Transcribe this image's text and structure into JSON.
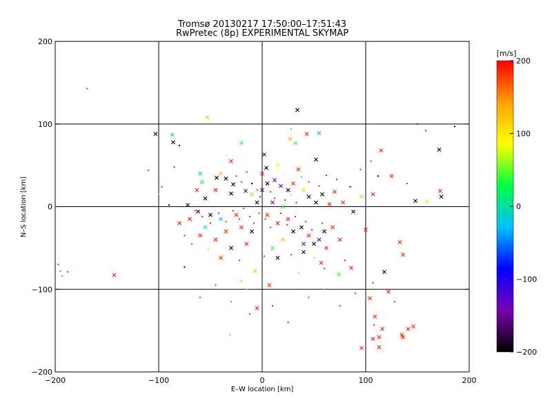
{
  "chart_data": {
    "type": "scatter",
    "title": "Tromsø 20130217 17:50:00–17:51:43",
    "subtitle": "RwPretec (8p) EXPERIMENTAL SKYMAP",
    "xlabel": "E–W location [km]",
    "ylabel": "N–S location [km]",
    "xlim": [
      -200,
      200
    ],
    "ylim": [
      -200,
      200
    ],
    "xticks": [
      "−200",
      "−100",
      "0",
      "100",
      "200"
    ],
    "yticks": [
      "−200",
      "−100",
      "0",
      "100",
      "200"
    ],
    "grid_lines": [
      -100,
      0,
      100
    ],
    "colorbar": {
      "label": "[m/s]",
      "range": [
        -200,
        200
      ],
      "ticks": [
        "−200",
        "−100",
        "0",
        "100",
        "200"
      ],
      "colormap": [
        "#000000",
        "#7a00b0",
        "#0000ff",
        "#00c0ff",
        "#00ff40",
        "#ffff00",
        "#ffa000",
        "#ff0000"
      ]
    },
    "marker_types": [
      "cross",
      "dot"
    ],
    "points": [
      {
        "x": -169,
        "y": 143,
        "v": 190,
        "m": "dot"
      },
      {
        "x": -197,
        "y": -70,
        "v": 190,
        "m": "dot"
      },
      {
        "x": -195,
        "y": -78,
        "v": 180,
        "m": "dot"
      },
      {
        "x": -193,
        "y": -84,
        "v": 170,
        "m": "dot"
      },
      {
        "x": -188,
        "y": -79,
        "v": 185,
        "m": "dot"
      },
      {
        "x": -143,
        "y": -83,
        "v": 190,
        "m": "cross"
      },
      {
        "x": -103,
        "y": 88,
        "v": -200,
        "m": "cross"
      },
      {
        "x": -86,
        "y": 78,
        "v": -200,
        "m": "cross"
      },
      {
        "x": -87,
        "y": 87,
        "v": -10,
        "m": "cross"
      },
      {
        "x": -53,
        "y": 108,
        "v": 120,
        "m": "cross"
      },
      {
        "x": -20,
        "y": 77,
        "v": 40,
        "m": "cross"
      },
      {
        "x": 34,
        "y": 117,
        "v": -200,
        "m": "cross"
      },
      {
        "x": 28,
        "y": 94,
        "v": 30,
        "m": "dot"
      },
      {
        "x": 43,
        "y": 88,
        "v": 190,
        "m": "cross"
      },
      {
        "x": 55,
        "y": 89,
        "v": -20,
        "m": "cross"
      },
      {
        "x": 32,
        "y": 77,
        "v": 40,
        "m": "cross"
      },
      {
        "x": 27,
        "y": 82,
        "v": 140,
        "m": "cross"
      },
      {
        "x": 2,
        "y": 63,
        "v": -160,
        "m": "cross"
      },
      {
        "x": 4,
        "y": 47,
        "v": -200,
        "m": "cross"
      },
      {
        "x": 52,
        "y": 57,
        "v": -200,
        "m": "cross"
      },
      {
        "x": 171,
        "y": 69,
        "v": -200,
        "m": "cross"
      },
      {
        "x": 150,
        "y": 100,
        "v": -120,
        "m": "dot"
      },
      {
        "x": 186,
        "y": 97,
        "v": -200,
        "m": "dot"
      },
      {
        "x": 158,
        "y": 92,
        "v": 190,
        "m": "dot"
      },
      {
        "x": 115,
        "y": 68,
        "v": 190,
        "m": "cross"
      },
      {
        "x": 125,
        "y": 37,
        "v": 190,
        "m": "cross"
      },
      {
        "x": 112,
        "y": 37,
        "v": -200,
        "m": "dot"
      },
      {
        "x": 172,
        "y": 19,
        "v": 190,
        "m": "cross"
      },
      {
        "x": 173,
        "y": 12,
        "v": -200,
        "m": "cross"
      },
      {
        "x": 148,
        "y": 7,
        "v": -200,
        "m": "cross"
      },
      {
        "x": 159,
        "y": 6,
        "v": 110,
        "m": "cross"
      },
      {
        "x": 107,
        "y": 15,
        "v": 190,
        "m": "cross"
      },
      {
        "x": 96,
        "y": 12,
        "v": 60,
        "m": "cross"
      },
      {
        "x": 88,
        "y": -6,
        "v": -200,
        "m": "cross"
      },
      {
        "x": 100,
        "y": -28,
        "v": 190,
        "m": "cross"
      },
      {
        "x": 118,
        "y": -79,
        "v": -200,
        "m": "cross"
      },
      {
        "x": 136,
        "y": -58,
        "v": 190,
        "m": "cross"
      },
      {
        "x": 133,
        "y": -43,
        "v": 190,
        "m": "cross"
      },
      {
        "x": 86,
        "y": -74,
        "v": 190,
        "m": "cross"
      },
      {
        "x": 74,
        "y": -82,
        "v": 40,
        "m": "cross"
      },
      {
        "x": 122,
        "y": -103,
        "v": 190,
        "m": "cross"
      },
      {
        "x": 104,
        "y": -111,
        "v": 190,
        "m": "cross"
      },
      {
        "x": 109,
        "y": -133,
        "v": 190,
        "m": "cross"
      },
      {
        "x": 116,
        "y": -148,
        "v": 190,
        "m": "cross"
      },
      {
        "x": 113,
        "y": -158,
        "v": 190,
        "m": "cross"
      },
      {
        "x": 107,
        "y": -160,
        "v": 190,
        "m": "cross"
      },
      {
        "x": 96,
        "y": -171,
        "v": 190,
        "m": "cross"
      },
      {
        "x": 113,
        "y": -170,
        "v": 190,
        "m": "cross"
      },
      {
        "x": 135,
        "y": -155,
        "v": 190,
        "m": "cross"
      },
      {
        "x": 136,
        "y": -158,
        "v": 190,
        "m": "cross"
      },
      {
        "x": 146,
        "y": -145,
        "v": 190,
        "m": "cross"
      },
      {
        "x": 141,
        "y": -148,
        "v": 190,
        "m": "cross"
      },
      {
        "x": -75,
        "y": -73,
        "v": -200,
        "m": "dot"
      },
      {
        "x": -31,
        "y": -155,
        "v": 50,
        "m": "dot"
      },
      {
        "x": -5,
        "y": -123,
        "v": 190,
        "m": "cross"
      },
      {
        "x": 7,
        "y": -95,
        "v": 190,
        "m": "cross"
      },
      {
        "x": -7,
        "y": -78,
        "v": 120,
        "m": "cross"
      },
      {
        "x": 15,
        "y": -62,
        "v": -200,
        "m": "cross"
      },
      {
        "x": 40,
        "y": -55,
        "v": -200,
        "m": "cross"
      },
      {
        "x": 57,
        "y": -68,
        "v": 190,
        "m": "cross"
      },
      {
        "x": -40,
        "y": -62,
        "v": 190,
        "m": "cross"
      },
      {
        "x": -58,
        "y": 30,
        "v": 30,
        "m": "cross"
      },
      {
        "x": -60,
        "y": 40,
        "v": -10,
        "m": "cross"
      },
      {
        "x": -44,
        "y": 35,
        "v": -200,
        "m": "cross"
      },
      {
        "x": -35,
        "y": 34,
        "v": -200,
        "m": "cross"
      },
      {
        "x": -28,
        "y": 27,
        "v": -200,
        "m": "cross"
      },
      {
        "x": -63,
        "y": 20,
        "v": 190,
        "m": "cross"
      },
      {
        "x": -55,
        "y": 10,
        "v": -200,
        "m": "cross"
      },
      {
        "x": -45,
        "y": 20,
        "v": 190,
        "m": "cross"
      },
      {
        "x": -30,
        "y": 16,
        "v": -200,
        "m": "cross"
      },
      {
        "x": -16,
        "y": 19,
        "v": -100,
        "m": "cross"
      },
      {
        "x": -10,
        "y": 15,
        "v": 60,
        "m": "cross"
      },
      {
        "x": 0,
        "y": 20,
        "v": -150,
        "m": "cross"
      },
      {
        "x": 5,
        "y": 28,
        "v": -200,
        "m": "cross"
      },
      {
        "x": 12,
        "y": 32,
        "v": -160,
        "m": "cross"
      },
      {
        "x": 18,
        "y": 25,
        "v": -120,
        "m": "cross"
      },
      {
        "x": 25,
        "y": 20,
        "v": -200,
        "m": "cross"
      },
      {
        "x": 30,
        "y": 28,
        "v": 190,
        "m": "cross"
      },
      {
        "x": 40,
        "y": 20,
        "v": 110,
        "m": "cross"
      },
      {
        "x": 45,
        "y": 12,
        "v": -200,
        "m": "cross"
      },
      {
        "x": 58,
        "y": 15,
        "v": -200,
        "m": "cross"
      },
      {
        "x": 70,
        "y": 18,
        "v": 190,
        "m": "cross"
      },
      {
        "x": 52,
        "y": 5,
        "v": -200,
        "m": "cross"
      },
      {
        "x": 65,
        "y": 3,
        "v": 190,
        "m": "cross"
      },
      {
        "x": 78,
        "y": 5,
        "v": 190,
        "m": "cross"
      },
      {
        "x": -72,
        "y": 2,
        "v": -200,
        "m": "cross"
      },
      {
        "x": -62,
        "y": -6,
        "v": -200,
        "m": "cross"
      },
      {
        "x": -50,
        "y": -10,
        "v": -200,
        "m": "cross"
      },
      {
        "x": -40,
        "y": -15,
        "v": -30,
        "m": "cross"
      },
      {
        "x": -25,
        "y": -10,
        "v": 190,
        "m": "cross"
      },
      {
        "x": -20,
        "y": -25,
        "v": 190,
        "m": "cross"
      },
      {
        "x": -35,
        "y": -30,
        "v": 190,
        "m": "cross"
      },
      {
        "x": -45,
        "y": -40,
        "v": 190,
        "m": "cross"
      },
      {
        "x": -55,
        "y": -25,
        "v": -10,
        "m": "cross"
      },
      {
        "x": -10,
        "y": -30,
        "v": -200,
        "m": "cross"
      },
      {
        "x": 5,
        "y": -10,
        "v": 190,
        "m": "cross"
      },
      {
        "x": 15,
        "y": -20,
        "v": 190,
        "m": "cross"
      },
      {
        "x": 25,
        "y": -15,
        "v": 190,
        "m": "cross"
      },
      {
        "x": 30,
        "y": -30,
        "v": -200,
        "m": "cross"
      },
      {
        "x": 38,
        "y": -25,
        "v": -200,
        "m": "cross"
      },
      {
        "x": 45,
        "y": -35,
        "v": 190,
        "m": "cross"
      },
      {
        "x": 50,
        "y": -45,
        "v": -200,
        "m": "cross"
      },
      {
        "x": 55,
        "y": -40,
        "v": -120,
        "m": "cross"
      },
      {
        "x": 60,
        "y": -30,
        "v": -200,
        "m": "cross"
      },
      {
        "x": 68,
        "y": -25,
        "v": 190,
        "m": "cross"
      },
      {
        "x": 75,
        "y": -40,
        "v": 190,
        "m": "cross"
      },
      {
        "x": 62,
        "y": -50,
        "v": 190,
        "m": "cross"
      },
      {
        "x": 40,
        "y": -45,
        "v": -150,
        "m": "cross"
      },
      {
        "x": 20,
        "y": -40,
        "v": 120,
        "m": "cross"
      },
      {
        "x": 10,
        "y": -50,
        "v": 40,
        "m": "cross"
      },
      {
        "x": -30,
        "y": -50,
        "v": -200,
        "m": "cross"
      },
      {
        "x": -15,
        "y": -45,
        "v": 190,
        "m": "cross"
      },
      {
        "x": -5,
        "y": 5,
        "v": -200,
        "m": "cross"
      },
      {
        "x": 10,
        "y": 5,
        "v": -120,
        "m": "cross"
      },
      {
        "x": 20,
        "y": 0,
        "v": 40,
        "m": "cross"
      },
      {
        "x": -70,
        "y": -15,
        "v": 190,
        "m": "cross"
      },
      {
        "x": -80,
        "y": -20,
        "v": 190,
        "m": "cross"
      },
      {
        "x": -60,
        "y": -35,
        "v": 190,
        "m": "cross"
      },
      {
        "x": 35,
        "y": 45,
        "v": 190,
        "m": "cross"
      },
      {
        "x": -30,
        "y": 55,
        "v": 190,
        "m": "cross"
      },
      {
        "x": -40,
        "y": 40,
        "v": 120,
        "m": "cross"
      },
      {
        "x": 0,
        "y": 40,
        "v": 190,
        "m": "cross"
      },
      {
        "x": 15,
        "y": 50,
        "v": 80,
        "m": "cross"
      },
      {
        "x": -85,
        "y": 48,
        "v": 190,
        "m": "dot"
      },
      {
        "x": -110,
        "y": 44,
        "v": 190,
        "m": "dot"
      },
      {
        "x": -97,
        "y": 24,
        "v": 190,
        "m": "dot"
      },
      {
        "x": -80,
        "y": 74,
        "v": -200,
        "m": "dot"
      },
      {
        "x": -25,
        "y": 37,
        "v": 190,
        "m": "dot"
      },
      {
        "x": -15,
        "y": 42,
        "v": 190,
        "m": "dot"
      },
      {
        "x": -20,
        "y": 30,
        "v": 190,
        "m": "dot"
      },
      {
        "x": -10,
        "y": 28,
        "v": -200,
        "m": "dot"
      },
      {
        "x": -5,
        "y": 20,
        "v": 190,
        "m": "dot"
      },
      {
        "x": -2,
        "y": 12,
        "v": -150,
        "m": "dot"
      },
      {
        "x": 8,
        "y": 18,
        "v": 190,
        "m": "dot"
      },
      {
        "x": 12,
        "y": 10,
        "v": 190,
        "m": "dot"
      },
      {
        "x": 22,
        "y": 8,
        "v": 190,
        "m": "dot"
      },
      {
        "x": 28,
        "y": 14,
        "v": 60,
        "m": "dot"
      },
      {
        "x": 33,
        "y": 5,
        "v": 190,
        "m": "dot"
      },
      {
        "x": 38,
        "y": 36,
        "v": -20,
        "m": "dot"
      },
      {
        "x": 45,
        "y": 30,
        "v": 190,
        "m": "dot"
      },
      {
        "x": 55,
        "y": 25,
        "v": 190,
        "m": "dot"
      },
      {
        "x": 62,
        "y": 38,
        "v": 190,
        "m": "dot"
      },
      {
        "x": 72,
        "y": 33,
        "v": 190,
        "m": "dot"
      },
      {
        "x": 85,
        "y": 24,
        "v": -200,
        "m": "dot"
      },
      {
        "x": 95,
        "y": 45,
        "v": 190,
        "m": "dot"
      },
      {
        "x": 105,
        "y": 55,
        "v": 190,
        "m": "dot"
      },
      {
        "x": 140,
        "y": 28,
        "v": 190,
        "m": "dot"
      },
      {
        "x": -65,
        "y": -5,
        "v": 190,
        "m": "dot"
      },
      {
        "x": -58,
        "y": -12,
        "v": 190,
        "m": "dot"
      },
      {
        "x": -50,
        "y": -20,
        "v": 190,
        "m": "dot"
      },
      {
        "x": -42,
        "y": -8,
        "v": 190,
        "m": "dot"
      },
      {
        "x": -35,
        "y": -18,
        "v": 190,
        "m": "dot"
      },
      {
        "x": -28,
        "y": -5,
        "v": 190,
        "m": "dot"
      },
      {
        "x": -22,
        "y": -15,
        "v": 190,
        "m": "dot"
      },
      {
        "x": -18,
        "y": -2,
        "v": 190,
        "m": "dot"
      },
      {
        "x": -12,
        "y": -12,
        "v": 190,
        "m": "dot"
      },
      {
        "x": -8,
        "y": -20,
        "v": 190,
        "m": "dot"
      },
      {
        "x": -3,
        "y": -8,
        "v": 190,
        "m": "dot"
      },
      {
        "x": 3,
        "y": -15,
        "v": 190,
        "m": "dot"
      },
      {
        "x": 8,
        "y": -25,
        "v": 190,
        "m": "dot"
      },
      {
        "x": 18,
        "y": -8,
        "v": 190,
        "m": "dot"
      },
      {
        "x": 24,
        "y": -22,
        "v": 190,
        "m": "dot"
      },
      {
        "x": 32,
        "y": -12,
        "v": 190,
        "m": "dot"
      },
      {
        "x": 42,
        "y": -18,
        "v": 190,
        "m": "dot"
      },
      {
        "x": 48,
        "y": -28,
        "v": 190,
        "m": "dot"
      },
      {
        "x": 58,
        "y": -20,
        "v": 190,
        "m": "dot"
      },
      {
        "x": -75,
        "y": -35,
        "v": 190,
        "m": "dot"
      },
      {
        "x": -68,
        "y": -45,
        "v": 190,
        "m": "dot"
      },
      {
        "x": -52,
        "y": -52,
        "v": 120,
        "m": "dot"
      },
      {
        "x": -38,
        "y": -58,
        "v": 100,
        "m": "dot"
      },
      {
        "x": -22,
        "y": -65,
        "v": 190,
        "m": "dot"
      },
      {
        "x": 2,
        "y": -60,
        "v": 190,
        "m": "dot"
      },
      {
        "x": 28,
        "y": -58,
        "v": 190,
        "m": "dot"
      },
      {
        "x": 50,
        "y": -62,
        "v": 60,
        "m": "dot"
      },
      {
        "x": -20,
        "y": -90,
        "v": 40,
        "m": "dot"
      },
      {
        "x": -15,
        "y": -100,
        "v": 120,
        "m": "dot"
      },
      {
        "x": -30,
        "y": -115,
        "v": -20,
        "m": "dot"
      },
      {
        "x": -12,
        "y": -130,
        "v": 190,
        "m": "dot"
      },
      {
        "x": 10,
        "y": -120,
        "v": 190,
        "m": "dot"
      },
      {
        "x": 25,
        "y": -140,
        "v": 190,
        "m": "dot"
      },
      {
        "x": 45,
        "y": -110,
        "v": 190,
        "m": "dot"
      },
      {
        "x": 60,
        "y": -100,
        "v": 50,
        "m": "dot"
      },
      {
        "x": 75,
        "y": -120,
        "v": 190,
        "m": "dot"
      },
      {
        "x": 90,
        "y": -105,
        "v": 190,
        "m": "dot"
      },
      {
        "x": 107,
        "y": -92,
        "v": 190,
        "m": "dot"
      },
      {
        "x": 128,
        "y": -115,
        "v": 190,
        "m": "dot"
      },
      {
        "x": 108,
        "y": -143,
        "v": 190,
        "m": "dot"
      },
      {
        "x": -60,
        "y": -110,
        "v": 190,
        "m": "dot"
      },
      {
        "x": -45,
        "y": -95,
        "v": 190,
        "m": "dot"
      },
      {
        "x": 35,
        "y": -80,
        "v": 120,
        "m": "dot"
      },
      {
        "x": 60,
        "y": -75,
        "v": 190,
        "m": "dot"
      },
      {
        "x": 80,
        "y": -65,
        "v": 190,
        "m": "dot"
      },
      {
        "x": -90,
        "y": 2,
        "v": -200,
        "m": "dot"
      },
      {
        "x": -100,
        "y": 15,
        "v": 50,
        "m": "dot"
      }
    ]
  }
}
